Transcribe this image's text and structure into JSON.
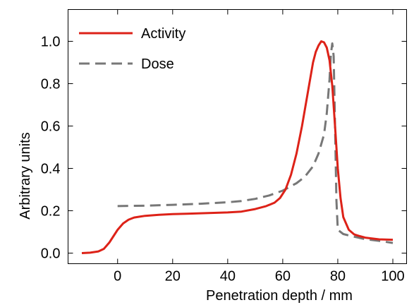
{
  "chart_data": {
    "type": "line",
    "title": "",
    "xlabel": "Penetration depth / mm",
    "ylabel": "Arbitrary units",
    "xlim": [
      -18,
      105
    ],
    "ylim": [
      -0.05,
      1.15
    ],
    "xticks": [
      0,
      20,
      40,
      60,
      80,
      100
    ],
    "xtick_labels": [
      "0",
      "20",
      "40",
      "60",
      "80",
      "100"
    ],
    "yticks": [
      0.0,
      0.2,
      0.4,
      0.6,
      0.8,
      1.0
    ],
    "ytick_labels": [
      "0.0",
      "0.2",
      "0.4",
      "0.6",
      "0.8",
      "1.0"
    ],
    "grid": false,
    "legend_position": "top-left",
    "series": [
      {
        "name": "Activity",
        "color": "#dd2218",
        "style": "solid",
        "x": [
          -13,
          -10,
          -7,
          -5,
          -3,
          -1,
          0,
          2,
          4,
          6,
          8,
          10,
          15,
          20,
          25,
          30,
          35,
          40,
          45,
          50,
          54,
          57,
          59,
          61,
          63,
          65,
          67,
          69,
          71,
          72,
          73,
          74,
          75,
          76,
          77,
          78,
          79,
          80,
          81,
          82,
          84,
          86,
          88,
          90,
          95,
          100
        ],
        "y": [
          0.0,
          0.002,
          0.008,
          0.02,
          0.05,
          0.09,
          0.11,
          0.14,
          0.158,
          0.168,
          0.172,
          0.176,
          0.181,
          0.184,
          0.186,
          0.188,
          0.19,
          0.192,
          0.196,
          0.208,
          0.222,
          0.238,
          0.26,
          0.3,
          0.37,
          0.47,
          0.6,
          0.75,
          0.9,
          0.95,
          0.98,
          1.0,
          0.995,
          0.97,
          0.91,
          0.79,
          0.6,
          0.4,
          0.26,
          0.17,
          0.11,
          0.088,
          0.08,
          0.073,
          0.065,
          0.063
        ]
      },
      {
        "name": "Dose",
        "color": "#777777",
        "style": "dashed",
        "x": [
          0,
          10,
          20,
          30,
          40,
          45,
          50,
          55,
          60,
          65,
          68,
          71,
          73,
          75,
          76,
          77,
          77.5,
          78,
          78.5,
          79,
          79.5,
          80,
          82,
          85,
          90,
          95,
          100
        ],
        "y": [
          0.222,
          0.224,
          0.228,
          0.233,
          0.24,
          0.246,
          0.256,
          0.272,
          0.295,
          0.33,
          0.36,
          0.41,
          0.47,
          0.56,
          0.66,
          0.82,
          0.94,
          0.99,
          0.93,
          0.6,
          0.25,
          0.11,
          0.09,
          0.08,
          0.066,
          0.058,
          0.048
        ]
      }
    ]
  }
}
